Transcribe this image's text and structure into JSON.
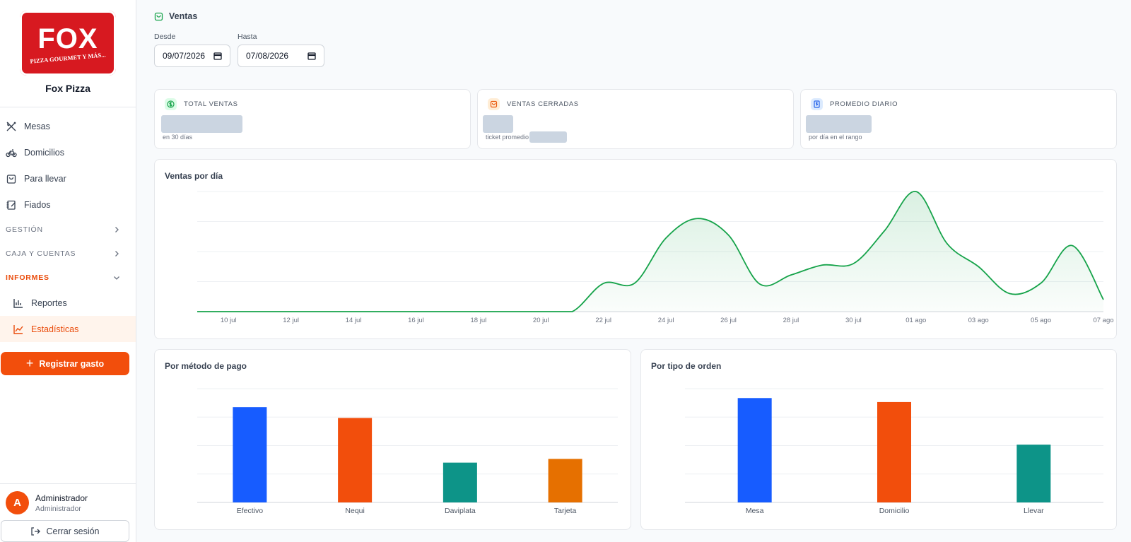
{
  "brand": {
    "name": "Fox Pizza",
    "logo_text": "FOX",
    "logo_tagline": "PIZZA GOURMET Y MÁS..."
  },
  "nav": {
    "items": [
      {
        "label": "Mesas",
        "icon": "utensils-icon"
      },
      {
        "label": "Domicilios",
        "icon": "bike-icon"
      },
      {
        "label": "Para llevar",
        "icon": "bag-icon"
      },
      {
        "label": "Fiados",
        "icon": "notebook-icon"
      }
    ],
    "sections": [
      {
        "label": "GESTIÓN",
        "expanded": false
      },
      {
        "label": "CAJA Y CUENTAS",
        "expanded": false
      },
      {
        "label": "INFORMES",
        "expanded": true
      }
    ],
    "subitems": [
      {
        "label": "Reportes",
        "icon": "bar-chart-icon",
        "active": false
      },
      {
        "label": "Estadísticas",
        "icon": "line-chart-icon",
        "active": true
      }
    ]
  },
  "cta": {
    "label": "Registrar gasto"
  },
  "user": {
    "initial": "A",
    "name": "Administrador",
    "role": "Administrador"
  },
  "logout": {
    "label": "Cerrar sesión"
  },
  "header": {
    "title": "Ventas"
  },
  "filters": {
    "from_label": "Desde",
    "from_value": "09/07/2026",
    "to_label": "Hasta",
    "to_value": "07/08/2026"
  },
  "kpis": [
    {
      "title": "TOTAL VENTAS",
      "sub": "en 30 días",
      "color": "#16a34a"
    },
    {
      "title": "VENTAS CERRADAS",
      "sub": "ticket promedio",
      "color": "#ea580c"
    },
    {
      "title": "PROMEDIO DIARIO",
      "sub": "por día en el rango",
      "color": "#2563eb"
    }
  ],
  "colors": {
    "accent": "#f24e0c",
    "line": "#16a34a",
    "blue": "#175cff",
    "orange": "#f24e0c",
    "teal": "#0d9488",
    "amber": "#e67000"
  },
  "chart_data": [
    {
      "type": "area",
      "title": "Ventas por día",
      "categories": [
        "10 jul",
        "12 jul",
        "14 jul",
        "16 jul",
        "18 jul",
        "20 jul",
        "22 jul",
        "24 jul",
        "26 jul",
        "28 jul",
        "30 jul",
        "01 ago",
        "03 ago",
        "05 ago",
        "07 ago"
      ],
      "x": [
        "09 jul",
        "10 jul",
        "11 jul",
        "12 jul",
        "13 jul",
        "14 jul",
        "15 jul",
        "16 jul",
        "17 jul",
        "18 jul",
        "19 jul",
        "20 jul",
        "21 jul",
        "22 jul",
        "23 jul",
        "24 jul",
        "25 jul",
        "26 jul",
        "27 jul",
        "28 jul",
        "29 jul",
        "30 jul",
        "31 jul",
        "01 ago",
        "02 ago",
        "03 ago",
        "04 ago",
        "05 ago",
        "06 ago",
        "07 ago"
      ],
      "values": [
        0,
        0,
        0,
        0,
        0,
        0,
        0,
        0,
        0,
        0,
        0,
        0,
        0,
        0.94,
        0.95,
        2.45,
        3.1,
        2.55,
        0.92,
        1.22,
        1.55,
        1.6,
        2.7,
        4.0,
        2.26,
        1.5,
        0.6,
        0.95,
        2.2,
        0.4
      ],
      "ylim": [
        0,
        4
      ],
      "grid": true
    },
    {
      "type": "bar",
      "title": "Por método de pago",
      "categories": [
        "Efectivo",
        "Nequi",
        "Daviplata",
        "Tarjeta"
      ],
      "values": [
        3.35,
        2.97,
        1.4,
        1.53
      ],
      "ylim": [
        0,
        4
      ],
      "colors": [
        "#175cff",
        "#f24e0c",
        "#0d9488",
        "#e67000"
      ],
      "grid": true
    },
    {
      "type": "bar",
      "title": "Por tipo de orden",
      "categories": [
        "Mesa",
        "Domicilio",
        "Llevar"
      ],
      "values": [
        3.67,
        3.53,
        2.03
      ],
      "ylim": [
        0,
        4
      ],
      "colors": [
        "#175cff",
        "#f24e0c",
        "#0d9488"
      ],
      "grid": true
    }
  ]
}
